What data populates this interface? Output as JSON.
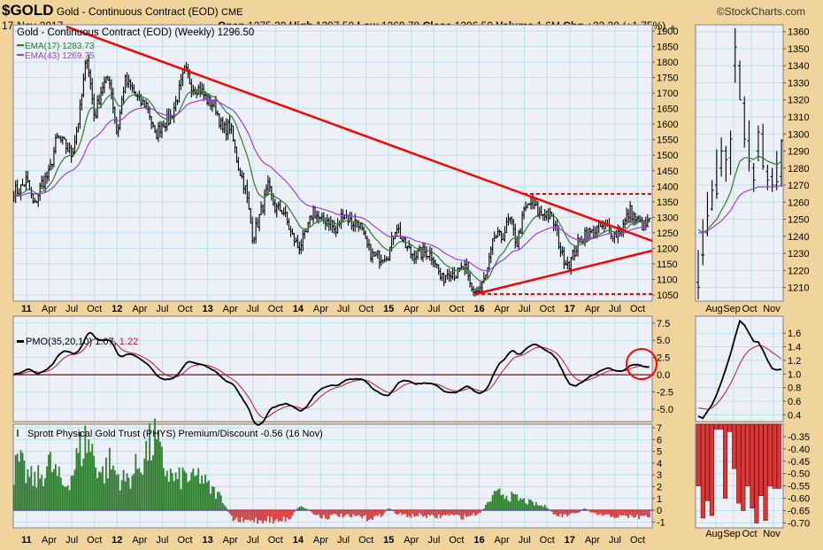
{
  "header": {
    "symbol": "$GOLD",
    "description": "Gold - Continuous Contract (EOD)",
    "exchange": "CME",
    "date": "17-Nov-2017",
    "watermark": "©StockCharts.com",
    "open_label": "Open",
    "open": "1275.30",
    "high_label": "High",
    "high": "1297.50",
    "low_label": "Low",
    "low": "1269.70",
    "close_label": "Close",
    "close": "1296.50",
    "volume_label": "Volume",
    "volume": "1.6M",
    "chg_label": "Chg",
    "chg": "+22.30 (+1.75%)",
    "up_color": "#2a8a2a"
  },
  "colors": {
    "background": "#f0d49b",
    "panel": "#eef0f8",
    "grid": "#b9e1ea",
    "ema17": "#2d7d2d",
    "ema43": "#9b3fe0",
    "trend": "#ff0000",
    "pmo": "#000000",
    "signal": "#c0143c",
    "positive": "#2f7d2f",
    "negative": "#d43a3a"
  },
  "chart_data": [
    {
      "type": "ohlc",
      "panel": "price-weekly",
      "legend": "Gold - Continuous Contract (EOD) (Weekly) 1296.50",
      "series": [
        {
          "name": "EMA(17) 1283.73"
        },
        {
          "name": "EMA(43) 1269.75"
        }
      ],
      "ylim": [
        1030,
        1920
      ],
      "yticks": [
        "1900",
        "1850",
        "1800",
        "1750",
        "1700",
        "1650",
        "1600",
        "1550",
        "1500",
        "1450",
        "1400",
        "1350",
        "1300",
        "1250",
        "1200",
        "1150",
        "1100",
        "1050"
      ],
      "xticks": [
        "11",
        "Apr",
        "Jul",
        "Oct",
        "12",
        "Apr",
        "Jul",
        "Oct",
        "13",
        "Apr",
        "Jul",
        "Oct",
        "14",
        "Apr",
        "Jul",
        "Oct",
        "15",
        "Apr",
        "Jul",
        "Oct",
        "16",
        "Apr",
        "Jul",
        "Oct",
        "17",
        "Apr",
        "Jul",
        "Oct"
      ],
      "monthly_close_start": "Nov 2010",
      "monthly_close": [
        1386,
        1421,
        1333,
        1410,
        1439,
        1556,
        1536,
        1500,
        1628,
        1825,
        1620,
        1722,
        1746,
        1566,
        1740,
        1711,
        1669,
        1664,
        1560,
        1604,
        1614,
        1687,
        1774,
        1719,
        1712,
        1675,
        1660,
        1578,
        1596,
        1472,
        1393,
        1234,
        1312,
        1396,
        1327,
        1323,
        1250,
        1202,
        1240,
        1326,
        1284,
        1295,
        1250,
        1322,
        1282,
        1287,
        1210,
        1171,
        1175,
        1184,
        1279,
        1212,
        1183,
        1182,
        1190,
        1172,
        1095,
        1132,
        1115,
        1141,
        1065,
        1061,
        1117,
        1238,
        1234,
        1293,
        1215,
        1322,
        1350,
        1309,
        1316,
        1276,
        1174,
        1152,
        1211,
        1252,
        1249,
        1268,
        1269,
        1242,
        1269,
        1321,
        1283,
        1271,
        1296
      ],
      "grid": true
    },
    {
      "type": "ohlc",
      "panel": "price-daily-mini",
      "ylim": [
        1202,
        1364
      ],
      "yticks": [
        "1360",
        "1350",
        "1340",
        "1330",
        "1320",
        "1310",
        "1300",
        "1290",
        "1280",
        "1270",
        "1260",
        "1250",
        "1240",
        "1230",
        "1220",
        "1210"
      ],
      "xticks": [
        "Aug",
        "Sep",
        "Oct",
        "Nov"
      ],
      "bars": [
        [
          1213,
          1232,
          1203,
          1210
        ],
        [
          1229,
          1250,
          1223,
          1229
        ],
        [
          1242,
          1266,
          1240,
          1252
        ],
        [
          1256,
          1273,
          1255,
          1267
        ],
        [
          1270,
          1291,
          1262,
          1265
        ],
        [
          1280,
          1298,
          1275,
          1290
        ],
        [
          1290,
          1293,
          1272,
          1285
        ],
        [
          1286,
          1302,
          1276,
          1297
        ],
        [
          1340,
          1362,
          1330,
          1351
        ],
        [
          1340,
          1343,
          1320,
          1320
        ],
        [
          1318,
          1322,
          1292,
          1297
        ],
        [
          1296,
          1308,
          1278,
          1284
        ],
        [
          1280,
          1283,
          1266,
          1273
        ],
        [
          1290,
          1305,
          1284,
          1301
        ],
        [
          1300,
          1306,
          1279,
          1281
        ],
        [
          1278,
          1282,
          1267,
          1273
        ],
        [
          1275,
          1280,
          1266,
          1270
        ],
        [
          1270,
          1290,
          1267,
          1272
        ],
        [
          1275,
          1297,
          1269,
          1296
        ]
      ],
      "ema17": [
        1244,
        1242,
        1244,
        1247,
        1250,
        1255,
        1260,
        1266,
        1276,
        1284,
        1286,
        1286,
        1285,
        1287,
        1286,
        1284,
        1283,
        1282,
        1284
      ],
      "ema43": [
        1242,
        1242,
        1243,
        1245,
        1247,
        1249,
        1252,
        1255,
        1260,
        1264,
        1266,
        1267,
        1268,
        1269,
        1269,
        1269,
        1269,
        1269,
        1270
      ]
    },
    {
      "type": "line",
      "panel": "pmo-weekly",
      "legend": "PMO(35,20,10) 1.07,",
      "legend_signal": "1.22",
      "ylim": [
        -6.8,
        8.5
      ],
      "yticks": [
        "7.5",
        "5.0",
        "2.5",
        "0.0",
        "-2.5",
        "-5.0"
      ],
      "series": [
        {
          "name": "PMO"
        },
        {
          "name": "Signal"
        }
      ]
    },
    {
      "type": "line",
      "panel": "pmo-daily-mini",
      "yticks": [
        "1.6",
        "1.4",
        "1.2",
        "1.0",
        "0.8",
        "0.6",
        "0.4"
      ],
      "ylim": [
        0.3,
        1.85
      ],
      "pmo": [
        0.38,
        0.35,
        0.45,
        0.55,
        0.7,
        0.88,
        1.08,
        1.3,
        1.55,
        1.78,
        1.72,
        1.6,
        1.48,
        1.47,
        1.35,
        1.2,
        1.08,
        1.06,
        1.07
      ],
      "signal": [
        0.5,
        0.49,
        0.48,
        0.5,
        0.56,
        0.64,
        0.74,
        0.86,
        1.0,
        1.15,
        1.27,
        1.35,
        1.39,
        1.42,
        1.41,
        1.37,
        1.32,
        1.27,
        1.22
      ]
    },
    {
      "type": "bar",
      "panel": "sprott-weekly",
      "legend": "Sprott Physical Gold Trust (PHYS) Premium/Discount -0.56 (16 Nov)",
      "ylim": [
        -1.5,
        7.3
      ],
      "yticks": [
        "7",
        "6",
        "5",
        "4",
        "3",
        "2",
        "1",
        "0",
        "-1"
      ],
      "monthly_start": "Nov 2010",
      "monthly": [
        3,
        4,
        3,
        2.5,
        3,
        4,
        3,
        2,
        3,
        5,
        6,
        4.5,
        3,
        4,
        3,
        2.5,
        3,
        4,
        5,
        6,
        4,
        3,
        2.5,
        3,
        2.5,
        3,
        2,
        1.5,
        1,
        -0.6,
        -0.9,
        -1,
        -0.8,
        -0.9,
        -0.7,
        -1,
        -0.8,
        -0.6,
        0.3,
        0.2,
        -0.3,
        -0.5,
        -0.6,
        -0.4,
        -0.5,
        -0.6,
        -0.5,
        -0.7,
        -0.6,
        -0.5,
        0.2,
        -0.3,
        -0.4,
        -0.5,
        -0.4,
        -0.5,
        -0.6,
        -0.5,
        -0.4,
        -0.5,
        -0.6,
        -0.4,
        -0.3,
        0.5,
        1.2,
        1.5,
        1.2,
        1.0,
        0.8,
        0.6,
        0.4,
        0.3,
        -0.4,
        -0.5,
        -0.4,
        -0.3,
        0.2,
        -0.3,
        -0.4,
        -0.5,
        -0.5,
        -0.6,
        -0.5,
        -0.6,
        -0.56
      ]
    },
    {
      "type": "bar",
      "panel": "sprott-daily-mini",
      "ylim": [
        -0.72,
        -0.3
      ],
      "yticks": [
        "-0.35",
        "-0.40",
        "-0.45",
        "-0.50",
        "-0.55",
        "-0.60",
        "-0.65",
        "-0.70"
      ],
      "xticks": [
        "Aug",
        "Sep",
        "Oct",
        "Nov"
      ],
      "values": [
        -0.55,
        -0.68,
        -0.61,
        -0.67,
        -0.32,
        -0.32,
        -0.6,
        -0.33,
        -0.48,
        -0.62,
        -0.65,
        -0.55,
        -0.64,
        -0.7,
        -0.59,
        -0.69,
        -0.55,
        -0.56,
        -0.56
      ]
    }
  ]
}
